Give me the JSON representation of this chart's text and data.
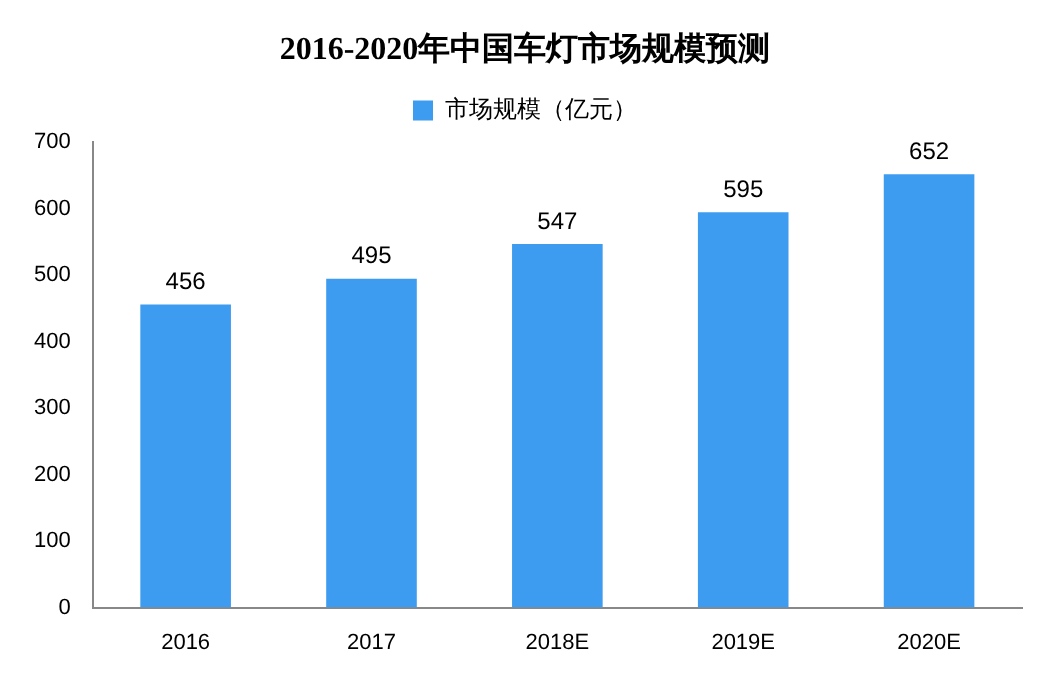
{
  "chart_data": {
    "type": "bar",
    "title": "2016-2020年中国车灯市场规模预测",
    "categories": [
      "2016",
      "2017",
      "2018E",
      "2019E",
      "2020E"
    ],
    "series": [
      {
        "name": "市场规模（亿元）",
        "color": "#3d9cf0",
        "values": [
          456,
          495,
          547,
          595,
          652
        ]
      }
    ],
    "ylim": [
      0,
      700
    ],
    "yticks": [
      0,
      100,
      200,
      300,
      400,
      500,
      600,
      700
    ],
    "grid": false,
    "legend": "top",
    "data_labels": true
  }
}
